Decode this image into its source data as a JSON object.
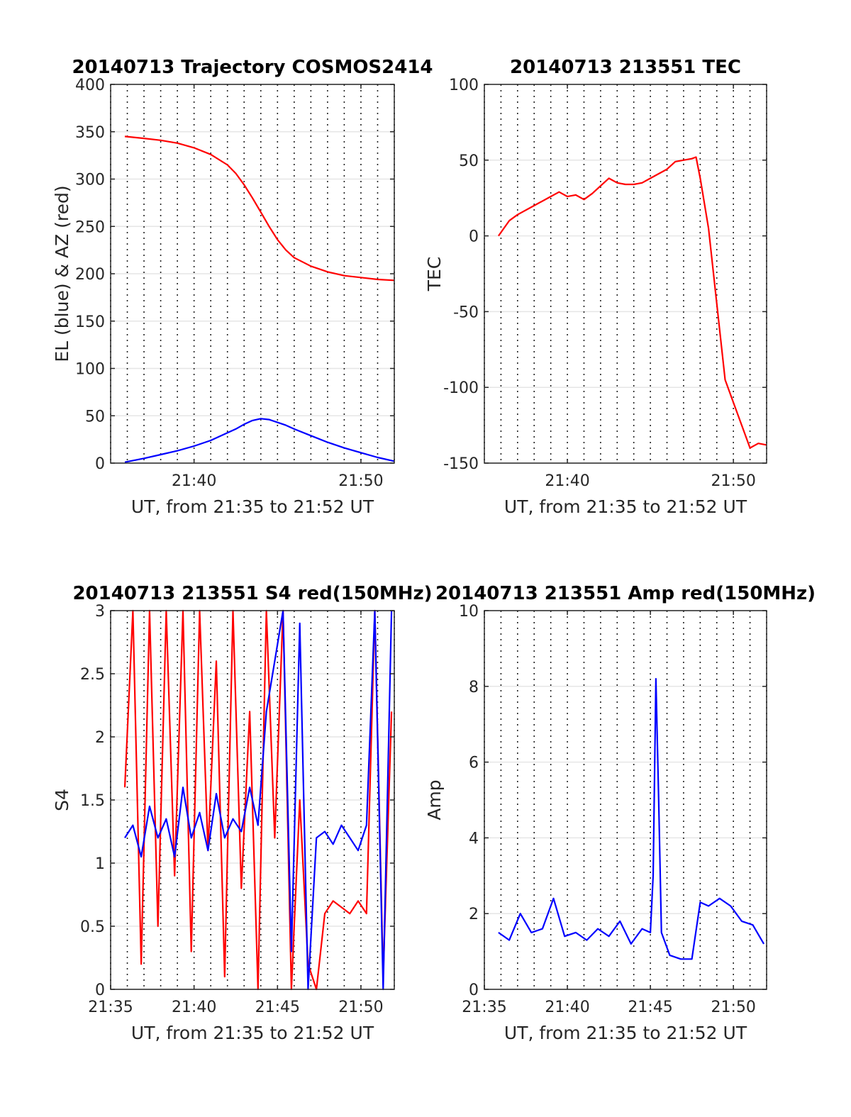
{
  "chart_data": [
    {
      "type": "line",
      "title": "20140713 Trajectory COSMOS2414",
      "xlabel": "UT, from 21:35 to 21:52 UT",
      "ylabel": "EL (blue) & AZ (red)",
      "xlim": [
        "21:35",
        "21:52"
      ],
      "ylim": [
        0,
        400
      ],
      "yticks": [
        0,
        50,
        100,
        150,
        200,
        250,
        300,
        350,
        400
      ],
      "xticks": [
        "21:40",
        "21:50"
      ],
      "grid": true,
      "x": [
        "21:35:51",
        "21:37",
        "21:38",
        "21:39",
        "21:40",
        "21:41",
        "21:42",
        "21:42:30",
        "21:43",
        "21:43:30",
        "21:44",
        "21:44:30",
        "21:45",
        "21:45:30",
        "21:46",
        "21:47",
        "21:48",
        "21:49",
        "21:50",
        "21:51",
        "21:52"
      ],
      "series": [
        {
          "color": "#ff0000",
          "values": [
            345,
            343,
            341,
            338,
            333,
            326,
            315,
            306,
            294,
            280,
            265,
            250,
            236,
            225,
            217,
            208,
            202,
            198,
            196,
            194,
            193
          ]
        },
        {
          "color": "#0000ff",
          "values": [
            1,
            5,
            9,
            13,
            18,
            24,
            32,
            36,
            41,
            45,
            47,
            46,
            43,
            40,
            36,
            29,
            22,
            16,
            11,
            6,
            2
          ]
        }
      ]
    },
    {
      "type": "line",
      "title": "20140713 213551 TEC",
      "xlabel": "UT, from 21:35 to 21:52 UT",
      "ylabel": "TEC",
      "xlim": [
        "21:35",
        "21:52"
      ],
      "ylim": [
        -150,
        100
      ],
      "yticks": [
        -150,
        -100,
        -50,
        0,
        50,
        100
      ],
      "xticks": [
        "21:40",
        "21:50"
      ],
      "grid": true,
      "x": [
        "21:35:51",
        "21:36:30",
        "21:37",
        "21:38",
        "21:39",
        "21:39:30",
        "21:40",
        "21:40:30",
        "21:41",
        "21:41:30",
        "21:42",
        "21:42:30",
        "21:43",
        "21:43:30",
        "21:44",
        "21:44:30",
        "21:45",
        "21:45:30",
        "21:46",
        "21:46:30",
        "21:47",
        "21:47:30",
        "21:47:45",
        "21:48",
        "21:48:30",
        "21:49",
        "21:49:30",
        "21:50",
        "21:50:30",
        "21:51",
        "21:51:30",
        "21:52"
      ],
      "series": [
        {
          "color": "#ff0000",
          "values": [
            0,
            10,
            14,
            20,
            26,
            29,
            26,
            27,
            24,
            28,
            33,
            38,
            35,
            34,
            34,
            35,
            38,
            41,
            44,
            49,
            50,
            51,
            52,
            38,
            5,
            -45,
            -95,
            -110,
            -125,
            -140,
            -137,
            -138
          ]
        }
      ]
    },
    {
      "type": "line",
      "title": "20140713 213551 S4 red(150MHz)",
      "xlabel": "UT, from 21:35 to 21:52 UT",
      "ylabel": "S4",
      "xlim": [
        "21:35",
        "21:52"
      ],
      "ylim": [
        0,
        3
      ],
      "yticks": [
        0,
        0.5,
        1,
        1.5,
        2,
        2.5,
        3
      ],
      "xticks": [
        "21:35",
        "21:40",
        "21:45",
        "21:50"
      ],
      "grid": true,
      "x": [
        "21:35:51",
        "21:36:20",
        "21:36:50",
        "21:37:20",
        "21:37:50",
        "21:38:20",
        "21:38:50",
        "21:39:20",
        "21:39:50",
        "21:40:20",
        "21:40:50",
        "21:41:20",
        "21:41:50",
        "21:42:20",
        "21:42:50",
        "21:43:20",
        "21:43:50",
        "21:44:20",
        "21:44:50",
        "21:45:20",
        "21:45:50",
        "21:46:20",
        "21:46:50",
        "21:47:20",
        "21:47:50",
        "21:48:20",
        "21:48:50",
        "21:49:20",
        "21:49:50",
        "21:50:20",
        "21:50:50",
        "21:51:20",
        "21:51:50"
      ],
      "series": [
        {
          "color": "#ff0000",
          "values": [
            1.6,
            3,
            0.2,
            3,
            0.5,
            3,
            0.9,
            3,
            0.3,
            3,
            1.1,
            2.6,
            0.1,
            3,
            0.8,
            2.2,
            0,
            3,
            1.2,
            3,
            0,
            1.5,
            0.2,
            0,
            0.6,
            0.7,
            0.65,
            0.6,
            0.7,
            0.6,
            3,
            0.1,
            2.2
          ]
        },
        {
          "color": "#0000ff",
          "values": [
            1.2,
            1.3,
            1.05,
            1.45,
            1.2,
            1.35,
            1.05,
            1.6,
            1.2,
            1.4,
            1.1,
            1.55,
            1.2,
            1.35,
            1.25,
            1.6,
            1.3,
            2.2,
            2.6,
            3,
            0.3,
            2.9,
            0,
            1.2,
            1.25,
            1.15,
            1.3,
            1.2,
            1.1,
            1.3,
            3,
            0,
            3
          ]
        }
      ]
    },
    {
      "type": "line",
      "title": "20140713 213551 Amp red(150MHz)",
      "xlabel": "UT, from 21:35 to 21:52 UT",
      "ylabel": "Amp",
      "xlim": [
        "21:35",
        "21:52"
      ],
      "ylim": [
        0,
        10
      ],
      "yticks": [
        0,
        2,
        4,
        6,
        8,
        10
      ],
      "xticks": [
        "21:35",
        "21:40",
        "21:45",
        "21:50"
      ],
      "grid": true,
      "x": [
        "21:35:51",
        "21:36:30",
        "21:37:10",
        "21:37:50",
        "21:38:30",
        "21:39:10",
        "21:39:50",
        "21:40:30",
        "21:41:10",
        "21:41:50",
        "21:42:30",
        "21:43:10",
        "21:43:50",
        "21:44:30",
        "21:45:00",
        "21:45:10",
        "21:45:20",
        "21:45:30",
        "21:45:40",
        "21:46:10",
        "21:46:50",
        "21:47:30",
        "21:48:00",
        "21:48:30",
        "21:49:10",
        "21:49:50",
        "21:50:30",
        "21:51:10",
        "21:51:50"
      ],
      "series": [
        {
          "color": "#0000ff",
          "values": [
            1.5,
            1.3,
            2,
            1.5,
            1.6,
            2.4,
            1.4,
            1.5,
            1.3,
            1.6,
            1.4,
            1.8,
            1.2,
            1.6,
            1.5,
            3,
            8.2,
            5,
            1.5,
            0.9,
            0.8,
            0.8,
            2.3,
            2.2,
            2.4,
            2.2,
            1.8,
            1.7,
            1.2
          ]
        }
      ]
    }
  ]
}
